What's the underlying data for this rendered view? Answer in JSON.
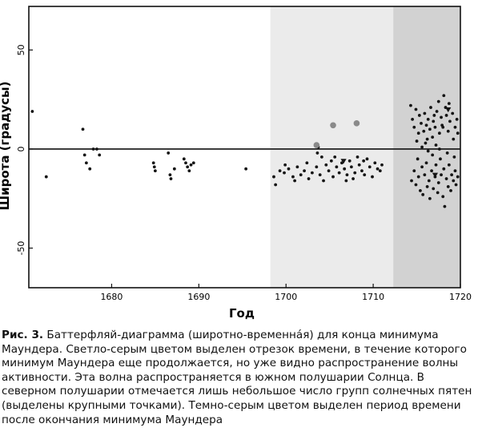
{
  "chart_data": {
    "type": "scatter",
    "xlabel": "Год",
    "ylabel": "Широта (градусы)",
    "xlim": [
      1670.5,
      1720
    ],
    "ylim": [
      -70,
      72
    ],
    "x_ticks": [
      1680,
      1690,
      1700,
      1710,
      1720
    ],
    "x_tick_labels": [
      "1680",
      "1690",
      "1700",
      "1710",
      "1720"
    ],
    "y_ticks": [
      50,
      0,
      -50
    ],
    "y_tick_labels": [
      "50",
      "0",
      "-50"
    ],
    "zero_line": true,
    "grid": false,
    "shaded_regions": [
      {
        "x0": 1698.2,
        "x1": 1712.3,
        "color": "#ebebeb"
      },
      {
        "x0": 1712.3,
        "x1": 1720,
        "color": "#d2d2d2"
      }
    ],
    "colors": {
      "points": "#141414",
      "large_points": "#8a8a8a",
      "axis": "#111111"
    },
    "series": [
      {
        "marker": "dot",
        "points": [
          [
            1670.9,
            19
          ],
          [
            1672.5,
            -14
          ],
          [
            1676.7,
            10
          ],
          [
            1676.9,
            -3
          ],
          [
            1677.1,
            -7
          ],
          [
            1677.5,
            -10
          ],
          [
            1677.9,
            0
          ],
          [
            1678.3,
            0
          ],
          [
            1678.6,
            -3
          ],
          [
            1684.8,
            -7
          ],
          [
            1684.9,
            -9
          ],
          [
            1685.0,
            -11
          ],
          [
            1686.5,
            -2
          ],
          [
            1686.7,
            -13
          ],
          [
            1686.8,
            -15
          ],
          [
            1687.2,
            -10
          ],
          [
            1688.3,
            -5
          ],
          [
            1688.5,
            -7
          ],
          [
            1688.7,
            -9
          ],
          [
            1688.9,
            -11
          ],
          [
            1689.1,
            -8
          ],
          [
            1689.4,
            -7
          ],
          [
            1695.4,
            -10
          ],
          [
            1698.6,
            -14
          ],
          [
            1698.8,
            -18
          ],
          [
            1699.3,
            -11
          ],
          [
            1699.8,
            -12
          ],
          [
            1700.3,
            -10
          ],
          [
            1700.8,
            -14
          ],
          [
            1701.3,
            -9
          ],
          [
            1701.7,
            -13
          ],
          [
            1702.1,
            -11
          ],
          [
            1702.6,
            -15
          ],
          [
            1703.0,
            -12
          ],
          [
            1703.5,
            -9
          ],
          [
            1703.6,
            -2
          ],
          [
            1703.7,
            1
          ],
          [
            1703.9,
            -13
          ],
          [
            1704.3,
            -16
          ],
          [
            1704.6,
            -8
          ],
          [
            1704.9,
            -11
          ],
          [
            1705.2,
            -6
          ],
          [
            1705.4,
            -14
          ],
          [
            1705.8,
            -9
          ],
          [
            1706.1,
            -12
          ],
          [
            1706.4,
            -7
          ],
          [
            1706.7,
            -10
          ],
          [
            1707.0,
            -13
          ],
          [
            1707.3,
            -6
          ],
          [
            1707.5,
            -9
          ],
          [
            1707.9,
            -12
          ],
          [
            1708.2,
            -4
          ],
          [
            1708.4,
            -8
          ],
          [
            1708.7,
            -11
          ],
          [
            1709.0,
            -13
          ],
          [
            1709.3,
            -5
          ],
          [
            1709.6,
            -9
          ],
          [
            1709.9,
            -14
          ],
          [
            1710.2,
            -7
          ],
          [
            1710.5,
            -10
          ],
          [
            1711.0,
            -8
          ],
          [
            1702.4,
            -7
          ],
          [
            1701.0,
            -16
          ],
          [
            1699.9,
            -8
          ],
          [
            1706.9,
            -16
          ],
          [
            1708.9,
            -6
          ],
          [
            1710.8,
            -11
          ],
          [
            1704.1,
            -4
          ],
          [
            1705.6,
            -4
          ],
          [
            1707.7,
            -15
          ],
          [
            1714.3,
            22
          ],
          [
            1714.5,
            15
          ],
          [
            1714.7,
            11
          ],
          [
            1714.9,
            20
          ],
          [
            1715.0,
            4
          ],
          [
            1715.2,
            8
          ],
          [
            1715.3,
            17
          ],
          [
            1715.5,
            13
          ],
          [
            1715.6,
            1
          ],
          [
            1715.8,
            9
          ],
          [
            1715.9,
            18
          ],
          [
            1716.1,
            12
          ],
          [
            1716.2,
            5
          ],
          [
            1716.3,
            15
          ],
          [
            1716.5,
            10
          ],
          [
            1716.6,
            21
          ],
          [
            1716.8,
            6
          ],
          [
            1716.9,
            14
          ],
          [
            1717.1,
            11
          ],
          [
            1717.2,
            2
          ],
          [
            1717.3,
            19
          ],
          [
            1717.5,
            24
          ],
          [
            1717.6,
            8
          ],
          [
            1717.8,
            16
          ],
          [
            1717.9,
            12
          ],
          [
            1718.1,
            27
          ],
          [
            1718.3,
            21
          ],
          [
            1718.4,
            17
          ],
          [
            1718.6,
            9
          ],
          [
            1718.8,
            14
          ],
          [
            1719.1,
            18
          ],
          [
            1719.2,
            5
          ],
          [
            1719.4,
            11
          ],
          [
            1719.7,
            8
          ],
          [
            1716.0,
            3
          ],
          [
            1717.0,
            17
          ],
          [
            1718.0,
            11
          ],
          [
            1718.7,
            23
          ],
          [
            1719.6,
            15
          ],
          [
            1714.4,
            -16
          ],
          [
            1714.7,
            -11
          ],
          [
            1714.9,
            -18
          ],
          [
            1715.1,
            -5
          ],
          [
            1715.2,
            -14
          ],
          [
            1715.4,
            -21
          ],
          [
            1715.6,
            -9
          ],
          [
            1715.7,
            -23
          ],
          [
            1715.9,
            -13
          ],
          [
            1716.1,
            -7
          ],
          [
            1716.2,
            -19
          ],
          [
            1716.4,
            -16
          ],
          [
            1716.5,
            -25
          ],
          [
            1716.7,
            -11
          ],
          [
            1716.8,
            -3
          ],
          [
            1716.9,
            -20
          ],
          [
            1717.1,
            -14
          ],
          [
            1717.2,
            -8
          ],
          [
            1717.4,
            -22
          ],
          [
            1717.5,
            -17
          ],
          [
            1717.7,
            -5
          ],
          [
            1717.8,
            -13
          ],
          [
            1718.0,
            -24
          ],
          [
            1718.1,
            -10
          ],
          [
            1718.2,
            -29
          ],
          [
            1718.4,
            -15
          ],
          [
            1718.6,
            -19
          ],
          [
            1718.7,
            -8
          ],
          [
            1718.9,
            -21
          ],
          [
            1719.0,
            -13
          ],
          [
            1719.2,
            -16
          ],
          [
            1719.4,
            -11
          ],
          [
            1719.5,
            -18
          ],
          [
            1719.7,
            -14
          ],
          [
            1716.3,
            -1
          ],
          [
            1717.6,
            0
          ],
          [
            1718.5,
            -2
          ],
          [
            1719.3,
            -4
          ]
        ]
      },
      {
        "marker": "large_dot",
        "points": [
          [
            1703.5,
            2
          ],
          [
            1705.4,
            12
          ],
          [
            1708.1,
            13
          ]
        ]
      },
      {
        "marker": "triangle",
        "points": [
          [
            1718.6,
            20
          ],
          [
            1717.1,
            -13
          ],
          [
            1706.6,
            -6
          ]
        ]
      }
    ]
  },
  "caption": {
    "label": "Рис. 3.",
    "text": "Баттерфляй-диаграмма (широтно-временна́я) для конца минимума Маундера. Светло-серым цветом выделен отрезок времени, в течение которого минимум Маундера еще продолжается, но уже видно распространение волны активности. Эта волна распространяется в южном полушарии Солнца. В северном полушарии отмечается лишь небольшое число групп солнечных пятен (выделены крупными точками). Темно-серым цветом выделен период времени после окончания минимума Маундера"
  }
}
